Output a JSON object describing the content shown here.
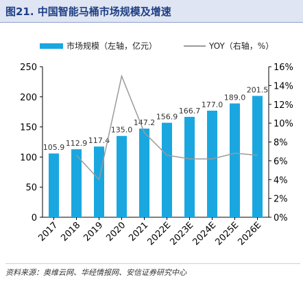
{
  "title": "图21. 中国智能马桶市场规模及增速",
  "source": "资料来源：奥维云网、华经情报网、安信证券研究中心",
  "colors": {
    "bar": "#1aa7e0",
    "line": "#9a9a9a",
    "title": "#1f3f85"
  },
  "chart_data": {
    "type": "bar",
    "categories": [
      "2017",
      "2018",
      "2019",
      "2020",
      "2021",
      "2022E",
      "2023E",
      "2024E",
      "2025E",
      "2026E"
    ],
    "series": [
      {
        "name": "市场规模（左轴，亿元）",
        "type": "bar",
        "axis": "left",
        "values": [
          105.9,
          112.9,
          117.4,
          135.0,
          147.2,
          156.9,
          166.7,
          177.0,
          189.0,
          201.5
        ],
        "labels": [
          "105.9",
          "112.9",
          "117.4",
          "135.0",
          "147.2",
          "156.9",
          "166.7",
          "177.0",
          "189.0",
          "201.5"
        ]
      },
      {
        "name": "YOY（右轴，%）",
        "type": "line",
        "axis": "right",
        "values": [
          null,
          6.6,
          4.0,
          15.0,
          9.0,
          6.6,
          6.2,
          6.2,
          6.8,
          6.6
        ]
      }
    ],
    "yleft": {
      "lim": [
        0,
        250
      ],
      "ticks": [
        "0",
        "50",
        "100",
        "150",
        "200",
        "250"
      ]
    },
    "yright": {
      "lim": [
        0,
        16
      ],
      "ticks": [
        "0%",
        "2%",
        "4%",
        "6%",
        "8%",
        "10%",
        "12%",
        "14%",
        "16%"
      ]
    },
    "legend_position": "top",
    "grid": false
  }
}
